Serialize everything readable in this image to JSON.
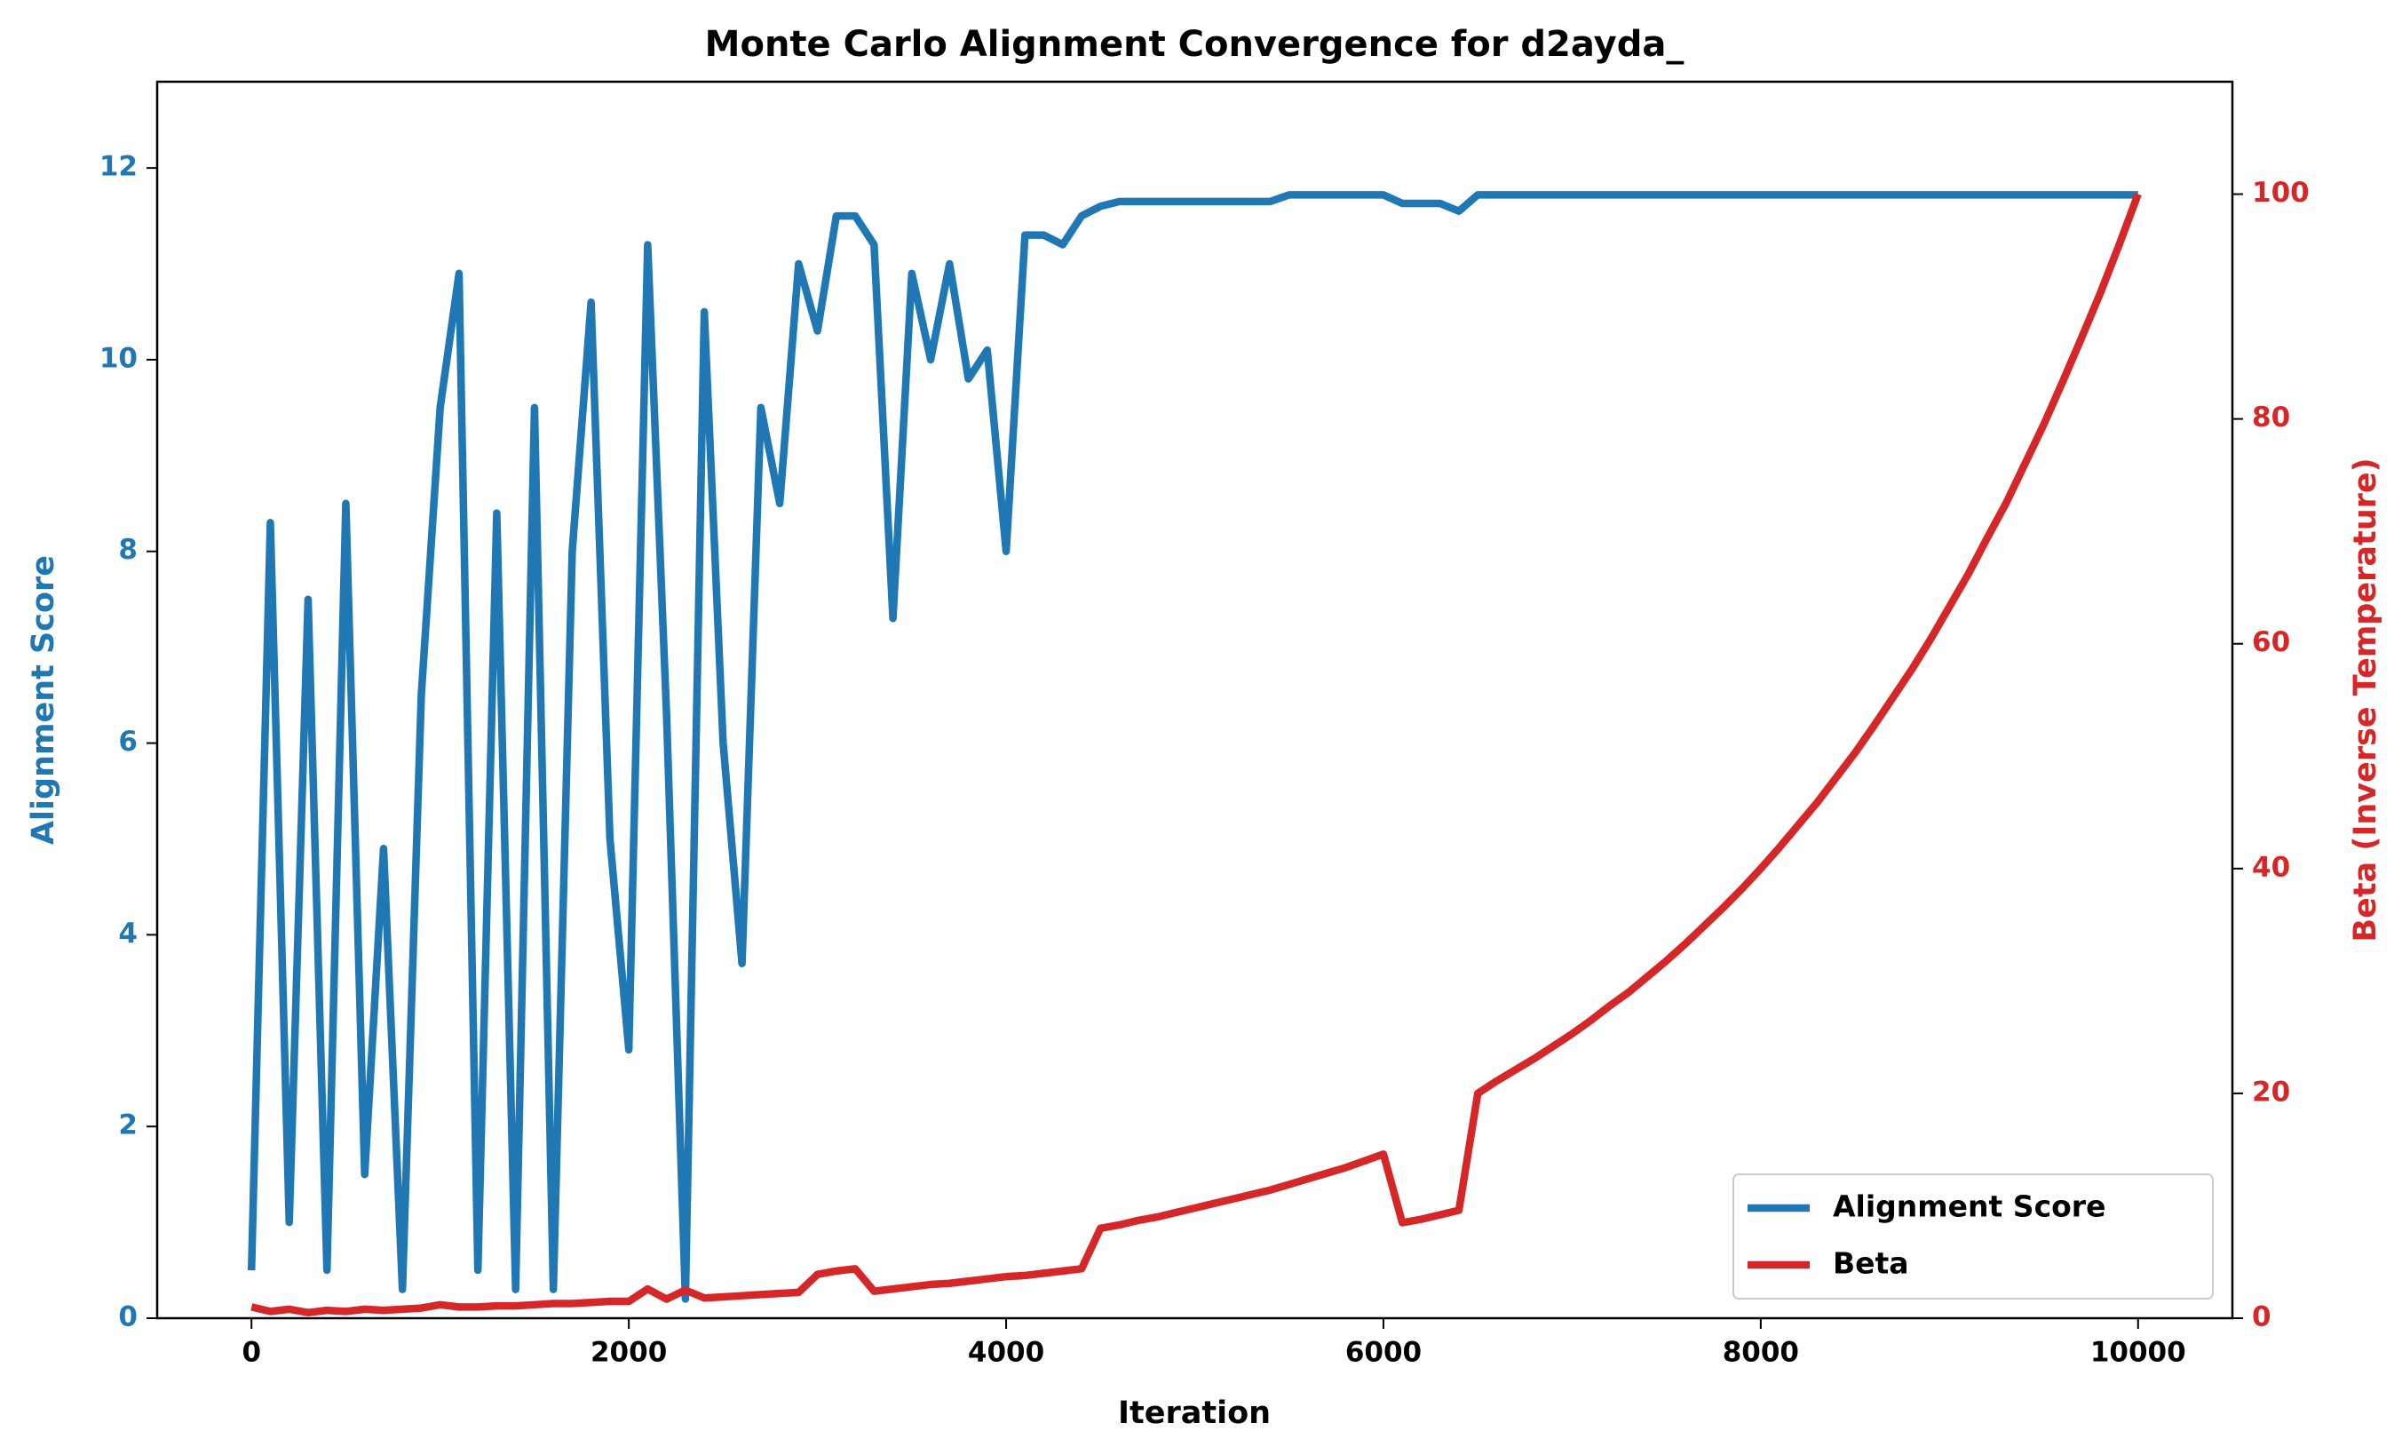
{
  "chart_data": {
    "type": "line",
    "title": "Monte Carlo Alignment Convergence for d2ayda_",
    "xlabel": "Iteration",
    "ylabel": "Alignment Score",
    "y2label": "Beta (Inverse Temperature)",
    "x": [
      0,
      100,
      200,
      300,
      400,
      500,
      600,
      700,
      800,
      900,
      1000,
      1100,
      1200,
      1300,
      1400,
      1500,
      1600,
      1700,
      1800,
      1900,
      2000,
      2100,
      2200,
      2300,
      2400,
      2500,
      2600,
      2700,
      2800,
      2900,
      3000,
      3100,
      3200,
      3300,
      3400,
      3500,
      3600,
      3700,
      3800,
      3900,
      4000,
      4100,
      4200,
      4300,
      4400,
      4500,
      4600,
      4700,
      4800,
      4900,
      5000,
      5100,
      5200,
      5300,
      5400,
      5500,
      5600,
      5700,
      5800,
      5900,
      6000,
      6100,
      6200,
      6300,
      6400,
      6500,
      6600,
      6700,
      6800,
      6900,
      7000,
      7100,
      7200,
      7300,
      7400,
      7500,
      7600,
      7700,
      7800,
      7900,
      8000,
      8100,
      8200,
      8300,
      8400,
      8500,
      8600,
      8700,
      8800,
      8900,
      9000,
      9100,
      9200,
      9300,
      9400,
      9500,
      9600,
      9700,
      9800,
      9900,
      10000
    ],
    "series": [
      {
        "name": "Alignment Score",
        "color": "#1f77b4",
        "axis": "y",
        "values": [
          0.5,
          8.3,
          1.0,
          7.5,
          0.5,
          8.5,
          1.5,
          4.9,
          0.3,
          6.5,
          9.5,
          10.9,
          0.5,
          8.4,
          0.3,
          9.5,
          0.3,
          8.0,
          10.6,
          5.0,
          2.8,
          11.2,
          6.3,
          0.2,
          10.5,
          6.0,
          3.7,
          9.5,
          8.5,
          11.0,
          10.3,
          11.5,
          11.5,
          11.2,
          7.3,
          10.9,
          10.0,
          11.0,
          9.8,
          10.1,
          8.0,
          11.3,
          11.3,
          11.2,
          11.5,
          11.6,
          11.65,
          11.65,
          11.65,
          11.65,
          11.65,
          11.65,
          11.65,
          11.65,
          11.65,
          11.72,
          11.72,
          11.72,
          11.72,
          11.72,
          11.72,
          11.63,
          11.63,
          11.63,
          11.55,
          11.72,
          11.72,
          11.72,
          11.72,
          11.72,
          11.72,
          11.72,
          11.72,
          11.72,
          11.72,
          11.72,
          11.72,
          11.72,
          11.72,
          11.72,
          11.72,
          11.72,
          11.72,
          11.72,
          11.72,
          11.72,
          11.72,
          11.72,
          11.72,
          11.72,
          11.72,
          11.72,
          11.72,
          11.72,
          11.72,
          11.72,
          11.72,
          11.72,
          11.72,
          11.72,
          11.72
        ]
      },
      {
        "name": "Beta",
        "color": "#d62728",
        "axis": "y2",
        "values": [
          1.0,
          0.6,
          0.8,
          0.5,
          0.7,
          0.6,
          0.8,
          0.7,
          0.8,
          0.9,
          1.2,
          1.0,
          1.0,
          1.1,
          1.1,
          1.2,
          1.3,
          1.3,
          1.4,
          1.5,
          1.5,
          2.6,
          1.7,
          2.5,
          1.8,
          1.9,
          2.0,
          2.1,
          2.2,
          2.3,
          3.9,
          4.2,
          4.4,
          2.4,
          2.6,
          2.8,
          3.0,
          3.1,
          3.3,
          3.5,
          3.7,
          3.8,
          4.0,
          4.2,
          4.4,
          8.0,
          8.3,
          8.7,
          9.0,
          9.4,
          9.8,
          10.2,
          10.6,
          11.0,
          11.4,
          11.9,
          12.4,
          12.9,
          13.4,
          14.0,
          14.6,
          8.5,
          8.8,
          9.2,
          9.6,
          20.0,
          21.1,
          22.1,
          23.1,
          24.2,
          25.3,
          26.5,
          27.8,
          29.0,
          30.4,
          31.8,
          33.3,
          34.9,
          36.5,
          38.2,
          40.0,
          41.9,
          43.9,
          45.9,
          48.1,
          50.3,
          52.7,
          55.2,
          57.7,
          60.4,
          63.3,
          66.2,
          69.4,
          72.5,
          76.0,
          79.5,
          83.3,
          87.2,
          91.2,
          95.5,
          100
        ]
      }
    ],
    "xlim": [
      -500,
      10500
    ],
    "xticks": [
      0,
      2000,
      4000,
      6000,
      8000,
      10000
    ],
    "ylim": [
      0,
      12.9
    ],
    "yticks": [
      0,
      2,
      4,
      6,
      8,
      10,
      12
    ],
    "y2lim": [
      0,
      110
    ],
    "y2ticks": [
      0,
      20,
      40,
      60,
      80,
      100
    ],
    "legend": "lower right"
  }
}
